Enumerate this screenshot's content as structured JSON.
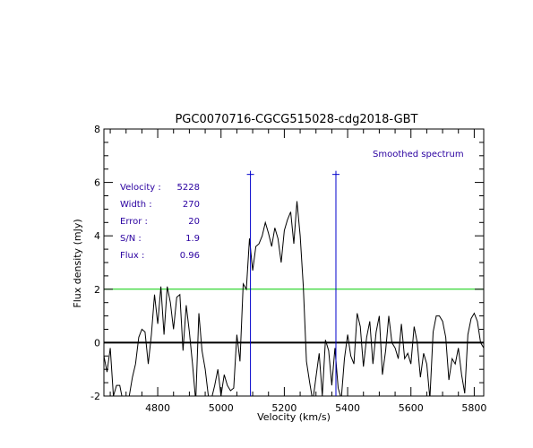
{
  "chart_data": {
    "type": "line",
    "title": "PGC0070716-CGCG515028-cdg2018-GBT",
    "xlabel": "Velocity (km/s)",
    "ylabel": "Flux density (mJy)",
    "xlim": [
      4630,
      5830
    ],
    "ylim": [
      -2,
      8
    ],
    "xticks": [
      "4800",
      "5000",
      "5200",
      "5400",
      "5600",
      "5800"
    ],
    "yticks": [
      "-2",
      "0",
      "2",
      "4",
      "6",
      "8"
    ],
    "legend_text": "Smoothed spectrum",
    "stats": [
      {
        "label": "Velocity :",
        "value": "5228"
      },
      {
        "label": "Width :",
        "value": "270"
      },
      {
        "label": "Error :",
        "value": "20"
      },
      {
        "label": "S/N :",
        "value": "1.9"
      },
      {
        "label": "Flux :",
        "value": "0.96"
      }
    ],
    "baseline": 0,
    "threshold": 2.0,
    "markers": [
      {
        "x": 5093,
        "y_top": 6.3
      },
      {
        "x": 5363,
        "y_top": 6.3
      }
    ],
    "colors": {
      "spectrum": "#000000",
      "threshold": "#00cc00",
      "markers": "#0000cc",
      "annotations": "#2a00a0"
    },
    "series": [
      {
        "x": [
          4630,
          4640,
          4650,
          4660,
          4670,
          4680,
          4690,
          4700,
          4710,
          4720,
          4730,
          4740,
          4750,
          4760,
          4770,
          4780,
          4790,
          4800,
          4810,
          4820,
          4830,
          4840,
          4850,
          4860,
          4870,
          4880,
          4890,
          4900,
          4910,
          4920,
          4930,
          4940,
          4950,
          4960,
          4970,
          4980,
          4990,
          5000,
          5010,
          5020,
          5030,
          5040,
          5050,
          5060,
          5070,
          5080,
          5090,
          5100,
          5110,
          5120,
          5130,
          5140,
          5150,
          5160,
          5170,
          5180,
          5190,
          5200,
          5210,
          5220,
          5230,
          5240,
          5250,
          5260,
          5270,
          5280,
          5290,
          5300,
          5310,
          5320,
          5330,
          5340,
          5350,
          5360,
          5370,
          5380,
          5390,
          5400,
          5410,
          5420,
          5430,
          5440,
          5450,
          5460,
          5470,
          5480,
          5490,
          5500,
          5510,
          5520,
          5530,
          5540,
          5550,
          5560,
          5570,
          5580,
          5590,
          5600,
          5610,
          5620,
          5630,
          5640,
          5650,
          5660,
          5670,
          5680,
          5690,
          5700,
          5710,
          5720,
          5730,
          5740,
          5750,
          5760,
          5770,
          5780,
          5790,
          5800,
          5810,
          5820,
          5830
        ],
        "y": [
          -0.5,
          -1.1,
          -0.2,
          -2.0,
          -1.6,
          -1.6,
          -2.2,
          -2.4,
          -2.0,
          -1.3,
          -0.8,
          0.2,
          0.5,
          0.4,
          -0.8,
          0.3,
          1.8,
          0.7,
          2.1,
          0.3,
          2.1,
          1.5,
          0.5,
          1.7,
          1.8,
          -0.3,
          1.4,
          0.4,
          -0.8,
          -2.2,
          1.1,
          -0.3,
          -1.0,
          -2.0,
          -2.1,
          -1.6,
          -1.0,
          -2.0,
          -1.2,
          -1.6,
          -1.8,
          -1.7,
          0.3,
          -0.7,
          2.2,
          2.0,
          3.9,
          2.7,
          3.6,
          3.7,
          4.0,
          4.5,
          4.1,
          3.6,
          4.3,
          3.9,
          3.0,
          4.2,
          4.6,
          4.9,
          3.7,
          5.3,
          4.0,
          2.1,
          -0.7,
          -1.5,
          -2.2,
          -1.3,
          -0.4,
          -2.0,
          0.1,
          -0.3,
          -1.6,
          -0.2,
          -1.7,
          -2.1,
          -0.6,
          0.3,
          -0.5,
          -0.8,
          1.1,
          0.6,
          -0.9,
          0.2,
          0.8,
          -0.8,
          0.4,
          1.0,
          -1.2,
          -0.3,
          1.0,
          0.0,
          -0.2,
          -0.6,
          0.7,
          -0.6,
          -0.4,
          -0.8,
          0.6,
          0.0,
          -1.3,
          -0.4,
          -0.8,
          -2.1,
          0.4,
          1.0,
          1.0,
          0.8,
          0.2,
          -1.4,
          -0.6,
          -0.8,
          -0.2,
          -1.2,
          -1.9,
          0.3,
          0.9,
          1.1,
          0.8,
          0.0,
          -0.2
        ]
      }
    ]
  }
}
